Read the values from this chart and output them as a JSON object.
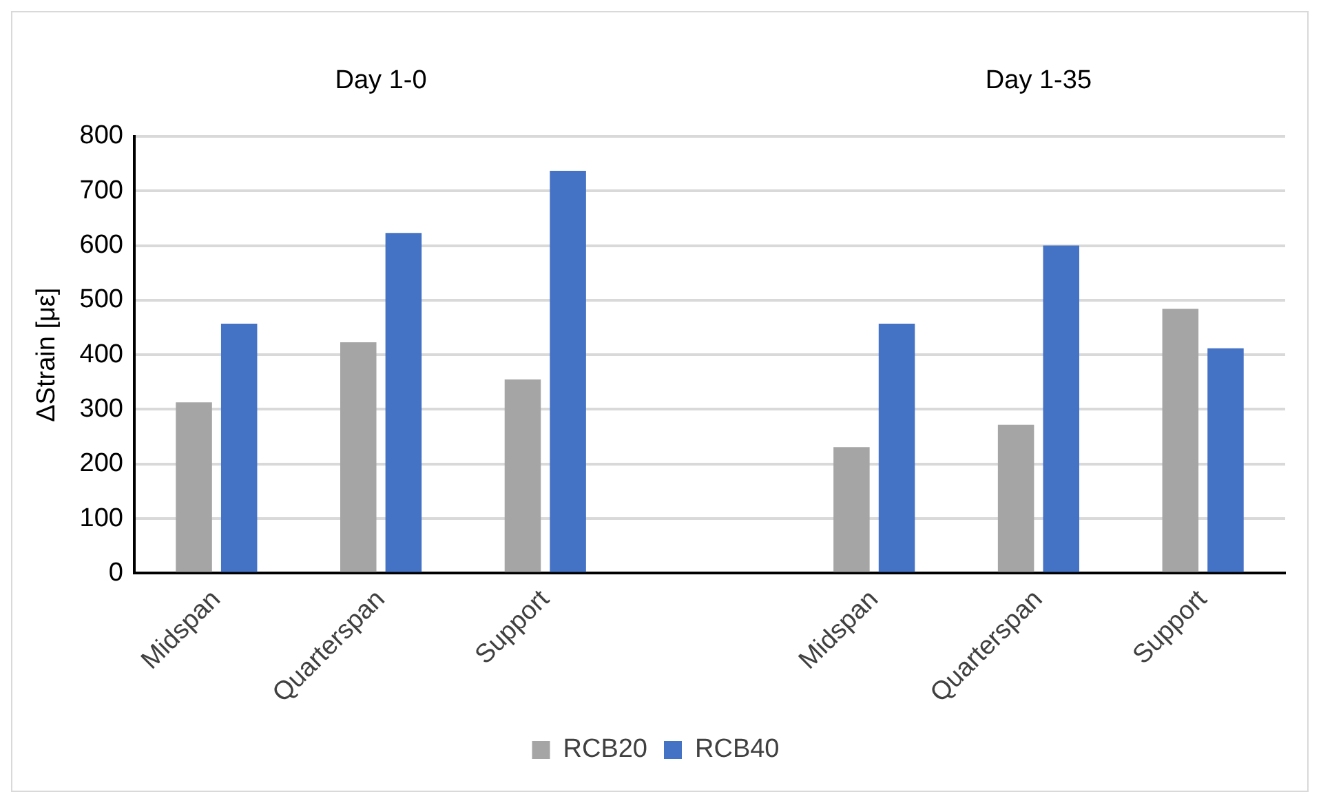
{
  "chart_data": {
    "type": "bar",
    "ylabel": "ΔStrain [με]",
    "annotations": [
      "Day 1-0",
      "Day 1-35"
    ],
    "categories": [
      "Midspan",
      "Quarterspan",
      "Support",
      null,
      "Midspan",
      "Quarterspan",
      "Support"
    ],
    "series": [
      {
        "name": "RCB20",
        "color": "#a5a5a5",
        "values": [
          313,
          423,
          355,
          null,
          231,
          272,
          484
        ]
      },
      {
        "name": "RCB40",
        "color": "#4472c4",
        "values": [
          457,
          623,
          737,
          null,
          457,
          600,
          412
        ]
      }
    ],
    "ylim": [
      0,
      800
    ],
    "yticks": [
      0,
      100,
      200,
      300,
      400,
      500,
      600,
      700,
      800
    ],
    "grid": "y",
    "legend": "bottom"
  }
}
